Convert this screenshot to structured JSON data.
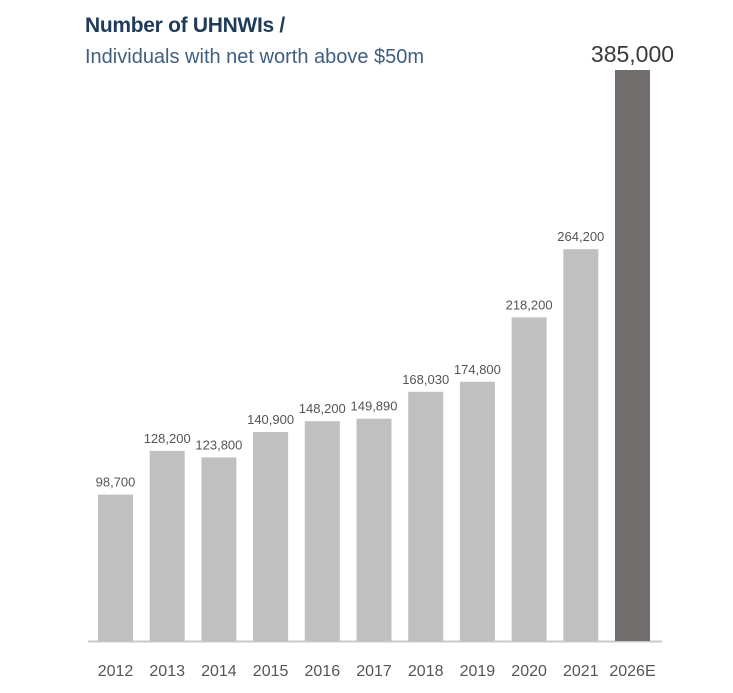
{
  "title": "Number of UHNWIs /",
  "subtitle": "Individuals with net worth above $50m",
  "colors": {
    "bar": "#c0c0c0",
    "highlight": "#726e6d",
    "axis": "#c8c8c8",
    "title": "#1f3b5a",
    "subtitle": "#3f5f80",
    "label": "#555555"
  },
  "chart_data": {
    "type": "bar",
    "categories": [
      "2012",
      "2013",
      "2014",
      "2015",
      "2016",
      "2017",
      "2018",
      "2019",
      "2020",
      "2021",
      "2026E"
    ],
    "value_labels": [
      "98,700",
      "128,200",
      "123,800",
      "140,900",
      "148,200",
      "149,890",
      "168,030",
      "174,800",
      "218,200",
      "264,200",
      "385,000"
    ],
    "values": [
      98700,
      128200,
      123800,
      140900,
      148200,
      149890,
      168030,
      174800,
      218200,
      264200,
      385000
    ],
    "highlight_category": "2026E",
    "ylim": [
      0,
      385000
    ],
    "grid": false,
    "legend": "none"
  }
}
